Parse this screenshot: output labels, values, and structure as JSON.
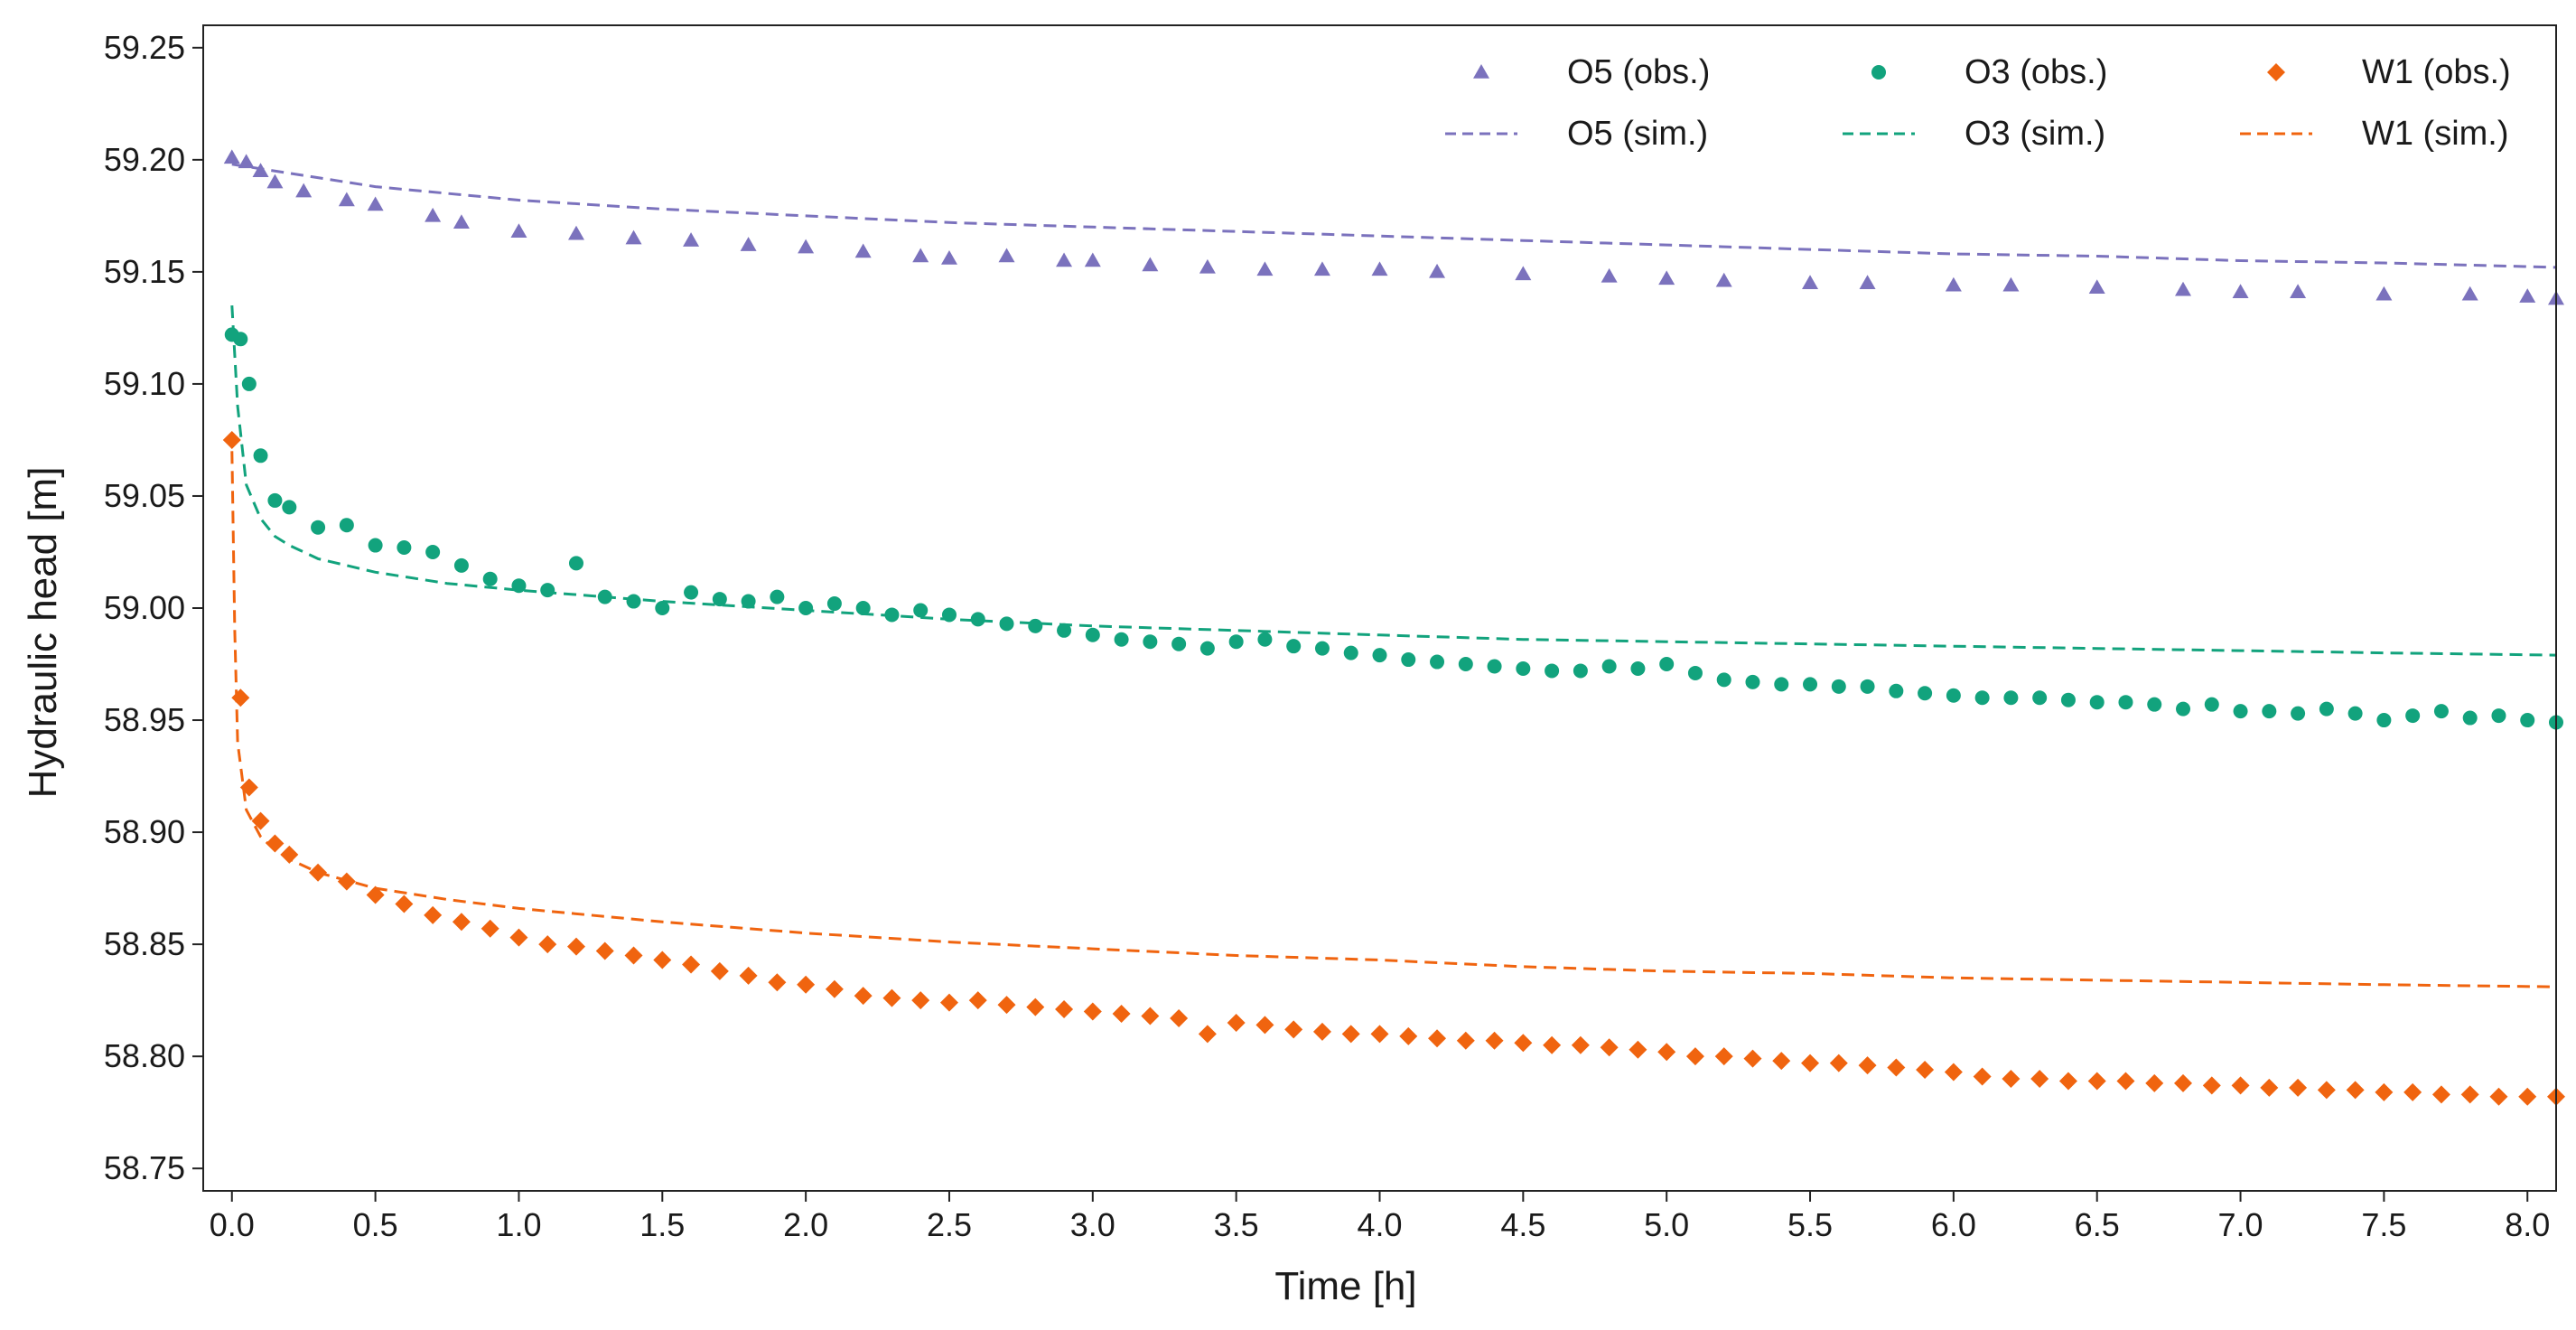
{
  "chart_data": {
    "type": "line",
    "title": "",
    "xlabel": "Time [h]",
    "ylabel": "Hydraulic head [m]",
    "xlim": [
      -0.1,
      8.1
    ],
    "ylim": [
      58.74,
      59.26
    ],
    "x_ticks": [
      "0.0",
      "0.5",
      "1.0",
      "1.5",
      "2.0",
      "2.5",
      "3.0",
      "3.5",
      "4.0",
      "4.5",
      "5.0",
      "5.5",
      "6.0",
      "6.5",
      "7.0",
      "7.5",
      "8.0"
    ],
    "y_ticks": [
      "58.75",
      "58.80",
      "58.85",
      "58.90",
      "58.95",
      "59.00",
      "59.05",
      "59.10",
      "59.15",
      "59.20",
      "59.25"
    ],
    "grid": false,
    "legend_position": "top-right",
    "colors": {
      "O5": "#7b72bd",
      "O3": "#12a37d",
      "W1": "#f0640f"
    },
    "series": [
      {
        "name": "O5 (obs.)",
        "kind": "scatter",
        "marker": "triangle",
        "color": "#7b72bd",
        "x": [
          0.0,
          0.05,
          0.1,
          0.15,
          0.25,
          0.4,
          0.5,
          0.7,
          0.8,
          1.0,
          1.2,
          1.4,
          1.6,
          1.8,
          2.0,
          2.2,
          2.4,
          2.5,
          2.7,
          2.9,
          3.0,
          3.2,
          3.4,
          3.6,
          3.8,
          4.0,
          4.2,
          4.5,
          4.8,
          5.0,
          5.2,
          5.5,
          5.7,
          6.0,
          6.2,
          6.5,
          6.8,
          7.0,
          7.2,
          7.5,
          7.8,
          8.0,
          8.1
        ],
        "y": [
          59.201,
          59.199,
          59.195,
          59.19,
          59.186,
          59.182,
          59.18,
          59.175,
          59.172,
          59.168,
          59.167,
          59.165,
          59.164,
          59.162,
          59.161,
          59.159,
          59.157,
          59.156,
          59.157,
          59.155,
          59.155,
          59.153,
          59.152,
          59.151,
          59.151,
          59.151,
          59.15,
          59.149,
          59.148,
          59.147,
          59.146,
          59.145,
          59.145,
          59.144,
          59.144,
          59.143,
          59.142,
          59.141,
          59.141,
          59.14,
          59.14,
          59.139,
          59.138
        ]
      },
      {
        "name": "O5 (sim.)",
        "kind": "line",
        "dash": true,
        "color": "#7b72bd",
        "x": [
          0.0,
          0.5,
          1.0,
          1.5,
          2.0,
          2.5,
          3.0,
          3.5,
          4.0,
          4.5,
          5.0,
          5.5,
          6.0,
          6.5,
          7.0,
          7.5,
          8.1
        ],
        "y": [
          59.198,
          59.188,
          59.182,
          59.178,
          59.175,
          59.172,
          59.17,
          59.168,
          59.166,
          59.164,
          59.162,
          59.16,
          59.158,
          59.157,
          59.155,
          59.154,
          59.152
        ]
      },
      {
        "name": "O3 (obs.)",
        "kind": "scatter",
        "marker": "circle",
        "color": "#12a37d",
        "x": [
          0.0,
          0.03,
          0.06,
          0.1,
          0.15,
          0.2,
          0.3,
          0.4,
          0.5,
          0.6,
          0.7,
          0.8,
          0.9,
          1.0,
          1.1,
          1.2,
          1.3,
          1.4,
          1.5,
          1.6,
          1.7,
          1.8,
          1.9,
          2.0,
          2.1,
          2.2,
          2.3,
          2.4,
          2.5,
          2.6,
          2.7,
          2.8,
          2.9,
          3.0,
          3.1,
          3.2,
          3.3,
          3.4,
          3.5,
          3.6,
          3.7,
          3.8,
          3.9,
          4.0,
          4.1,
          4.2,
          4.3,
          4.4,
          4.5,
          4.6,
          4.7,
          4.8,
          4.9,
          5.0,
          5.1,
          5.2,
          5.3,
          5.4,
          5.5,
          5.6,
          5.7,
          5.8,
          5.9,
          6.0,
          6.1,
          6.2,
          6.3,
          6.4,
          6.5,
          6.6,
          6.7,
          6.8,
          6.9,
          7.0,
          7.1,
          7.2,
          7.3,
          7.4,
          7.5,
          7.6,
          7.7,
          7.8,
          7.9,
          8.0,
          8.1
        ],
        "y": [
          59.122,
          59.12,
          59.1,
          59.068,
          59.048,
          59.045,
          59.036,
          59.037,
          59.028,
          59.027,
          59.025,
          59.019,
          59.013,
          59.01,
          59.008,
          59.02,
          59.005,
          59.003,
          59.0,
          59.007,
          59.004,
          59.003,
          59.005,
          59.0,
          59.002,
          59.0,
          58.997,
          58.999,
          58.997,
          58.995,
          58.993,
          58.992,
          58.99,
          58.988,
          58.986,
          58.985,
          58.984,
          58.982,
          58.985,
          58.986,
          58.983,
          58.982,
          58.98,
          58.979,
          58.977,
          58.976,
          58.975,
          58.974,
          58.973,
          58.972,
          58.972,
          58.974,
          58.973,
          58.975,
          58.971,
          58.968,
          58.967,
          58.966,
          58.966,
          58.965,
          58.965,
          58.963,
          58.962,
          58.961,
          58.96,
          58.96,
          58.96,
          58.959,
          58.958,
          58.958,
          58.957,
          58.955,
          58.957,
          58.954,
          58.954,
          58.953,
          58.955,
          58.953,
          58.95,
          58.952,
          58.954,
          58.951,
          58.952,
          58.95,
          58.949
        ]
      },
      {
        "name": "O3 (sim.)",
        "kind": "line",
        "dash": true,
        "color": "#12a37d",
        "x": [
          0.0,
          0.02,
          0.05,
          0.1,
          0.15,
          0.2,
          0.3,
          0.5,
          0.75,
          1.0,
          1.5,
          2.0,
          2.5,
          3.0,
          3.5,
          4.0,
          4.5,
          5.0,
          5.5,
          6.0,
          6.5,
          7.0,
          7.5,
          8.1
        ],
        "y": [
          59.135,
          59.09,
          59.055,
          59.04,
          59.032,
          59.028,
          59.022,
          59.016,
          59.011,
          59.008,
          59.003,
          58.999,
          58.995,
          58.992,
          58.99,
          58.988,
          58.986,
          58.985,
          58.984,
          58.983,
          58.982,
          58.981,
          58.98,
          58.979
        ]
      },
      {
        "name": "W1 (obs.)",
        "kind": "scatter",
        "marker": "diamond",
        "color": "#f0640f",
        "x": [
          0.0,
          0.03,
          0.06,
          0.1,
          0.15,
          0.2,
          0.3,
          0.4,
          0.5,
          0.6,
          0.7,
          0.8,
          0.9,
          1.0,
          1.1,
          1.2,
          1.3,
          1.4,
          1.5,
          1.6,
          1.7,
          1.8,
          1.9,
          2.0,
          2.1,
          2.2,
          2.3,
          2.4,
          2.5,
          2.6,
          2.7,
          2.8,
          2.9,
          3.0,
          3.1,
          3.2,
          3.3,
          3.4,
          3.5,
          3.6,
          3.7,
          3.8,
          3.9,
          4.0,
          4.1,
          4.2,
          4.3,
          4.4,
          4.5,
          4.6,
          4.7,
          4.8,
          4.9,
          5.0,
          5.1,
          5.2,
          5.3,
          5.4,
          5.5,
          5.6,
          5.7,
          5.8,
          5.9,
          6.0,
          6.1,
          6.2,
          6.3,
          6.4,
          6.5,
          6.6,
          6.7,
          6.8,
          6.9,
          7.0,
          7.1,
          7.2,
          7.3,
          7.4,
          7.5,
          7.6,
          7.7,
          7.8,
          7.9,
          8.0,
          8.1
        ],
        "y": [
          59.075,
          58.96,
          58.92,
          58.905,
          58.895,
          58.89,
          58.882,
          58.878,
          58.872,
          58.868,
          58.863,
          58.86,
          58.857,
          58.853,
          58.85,
          58.849,
          58.847,
          58.845,
          58.843,
          58.841,
          58.838,
          58.836,
          58.833,
          58.832,
          58.83,
          58.827,
          58.826,
          58.825,
          58.824,
          58.825,
          58.823,
          58.822,
          58.821,
          58.82,
          58.819,
          58.818,
          58.817,
          58.81,
          58.815,
          58.814,
          58.812,
          58.811,
          58.81,
          58.81,
          58.809,
          58.808,
          58.807,
          58.807,
          58.806,
          58.805,
          58.805,
          58.804,
          58.803,
          58.802,
          58.8,
          58.8,
          58.799,
          58.798,
          58.797,
          58.797,
          58.796,
          58.795,
          58.794,
          58.793,
          58.791,
          58.79,
          58.79,
          58.789,
          58.789,
          58.789,
          58.788,
          58.788,
          58.787,
          58.787,
          58.786,
          58.786,
          58.785,
          58.785,
          58.784,
          58.784,
          58.783,
          58.783,
          58.782,
          58.782,
          58.782
        ]
      },
      {
        "name": "W1 (sim.)",
        "kind": "line",
        "dash": true,
        "color": "#f0640f",
        "x": [
          0.0,
          0.01,
          0.02,
          0.05,
          0.1,
          0.15,
          0.2,
          0.3,
          0.5,
          0.75,
          1.0,
          1.5,
          2.0,
          2.5,
          3.0,
          3.5,
          4.0,
          4.5,
          5.0,
          5.5,
          6.0,
          6.5,
          7.0,
          7.5,
          8.1
        ],
        "y": [
          59.07,
          58.99,
          58.94,
          58.91,
          58.898,
          58.892,
          58.888,
          58.882,
          58.875,
          58.87,
          58.866,
          58.86,
          58.855,
          58.851,
          58.848,
          58.845,
          58.843,
          58.84,
          58.838,
          58.837,
          58.835,
          58.834,
          58.833,
          58.832,
          58.831
        ]
      }
    ]
  }
}
